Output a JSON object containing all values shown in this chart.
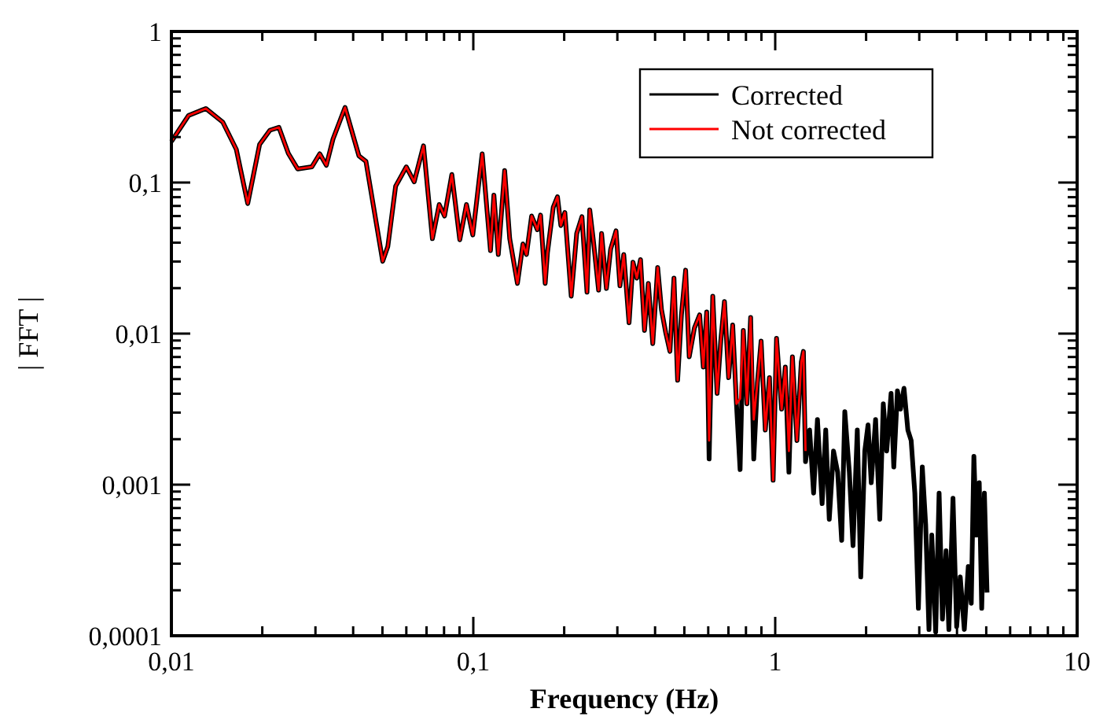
{
  "chart_data": {
    "type": "line",
    "xlabel": "Frequency (Hz)",
    "ylabel": "| FFT |",
    "log": "xy",
    "xlim": [
      0.01,
      10
    ],
    "ylim": [
      0.0001,
      1
    ],
    "xticks": [
      {
        "value": 0.01,
        "label": "0,01"
      },
      {
        "value": 0.02,
        "label": null
      },
      {
        "value": 0.03,
        "label": null
      },
      {
        "value": 0.04,
        "label": null
      },
      {
        "value": 0.05,
        "label": null
      },
      {
        "value": 0.06,
        "label": null
      },
      {
        "value": 0.07,
        "label": null
      },
      {
        "value": 0.08,
        "label": null
      },
      {
        "value": 0.09,
        "label": null
      },
      {
        "value": 0.1,
        "label": "0,1"
      },
      {
        "value": 0.2,
        "label": null
      },
      {
        "value": 0.3,
        "label": null
      },
      {
        "value": 0.4,
        "label": null
      },
      {
        "value": 0.5,
        "label": null
      },
      {
        "value": 0.6,
        "label": null
      },
      {
        "value": 0.7,
        "label": null
      },
      {
        "value": 0.8,
        "label": null
      },
      {
        "value": 0.9,
        "label": null
      },
      {
        "value": 1,
        "label": "1"
      },
      {
        "value": 2,
        "label": null
      },
      {
        "value": 3,
        "label": null
      },
      {
        "value": 4,
        "label": null
      },
      {
        "value": 5,
        "label": null
      },
      {
        "value": 6,
        "label": null
      },
      {
        "value": 7,
        "label": null
      },
      {
        "value": 8,
        "label": null
      },
      {
        "value": 9,
        "label": null
      },
      {
        "value": 10,
        "label": "10"
      }
    ],
    "yticks": [
      {
        "value": 0.0001,
        "label": "0,0001"
      },
      {
        "value": 0.0002,
        "label": null
      },
      {
        "value": 0.0003,
        "label": null
      },
      {
        "value": 0.0004,
        "label": null
      },
      {
        "value": 0.0005,
        "label": null
      },
      {
        "value": 0.0006,
        "label": null
      },
      {
        "value": 0.0007,
        "label": null
      },
      {
        "value": 0.0008,
        "label": null
      },
      {
        "value": 0.0009,
        "label": null
      },
      {
        "value": 0.001,
        "label": "0,001"
      },
      {
        "value": 0.002,
        "label": null
      },
      {
        "value": 0.003,
        "label": null
      },
      {
        "value": 0.004,
        "label": null
      },
      {
        "value": 0.005,
        "label": null
      },
      {
        "value": 0.006,
        "label": null
      },
      {
        "value": 0.007,
        "label": null
      },
      {
        "value": 0.008,
        "label": null
      },
      {
        "value": 0.009,
        "label": null
      },
      {
        "value": 0.01,
        "label": "0,01"
      },
      {
        "value": 0.02,
        "label": null
      },
      {
        "value": 0.03,
        "label": null
      },
      {
        "value": 0.04,
        "label": null
      },
      {
        "value": 0.05,
        "label": null
      },
      {
        "value": 0.06,
        "label": null
      },
      {
        "value": 0.07,
        "label": null
      },
      {
        "value": 0.08,
        "label": null
      },
      {
        "value": 0.09,
        "label": null
      },
      {
        "value": 0.1,
        "label": "0,1"
      },
      {
        "value": 0.2,
        "label": null
      },
      {
        "value": 0.3,
        "label": null
      },
      {
        "value": 0.4,
        "label": null
      },
      {
        "value": 0.5,
        "label": null
      },
      {
        "value": 0.6,
        "label": null
      },
      {
        "value": 0.7,
        "label": null
      },
      {
        "value": 0.8,
        "label": null
      },
      {
        "value": 0.9,
        "label": null
      },
      {
        "value": 1,
        "label": "1"
      }
    ],
    "legend": "top right",
    "series": [
      {
        "name": "Corrected",
        "color": "#000000",
        "x": [
          0.01,
          0.0114,
          0.013,
          0.0148,
          0.0164,
          0.0179,
          0.0196,
          0.0212,
          0.0227,
          0.0244,
          0.0262,
          0.0292,
          0.031,
          0.0326,
          0.0343,
          0.0376,
          0.0418,
          0.0441,
          0.0501,
          0.0521,
          0.0553,
          0.06,
          0.0637,
          0.0684,
          0.0732,
          0.0771,
          0.0803,
          0.0849,
          0.0902,
          0.0949,
          0.0996,
          0.107,
          0.114,
          0.117,
          0.121,
          0.127,
          0.132,
          0.14,
          0.146,
          0.15,
          0.156,
          0.163,
          0.167,
          0.173,
          0.176,
          0.184,
          0.19,
          0.195,
          0.201,
          0.211,
          0.22,
          0.229,
          0.238,
          0.243,
          0.25,
          0.26,
          0.266,
          0.276,
          0.285,
          0.297,
          0.306,
          0.315,
          0.328,
          0.338,
          0.348,
          0.358,
          0.369,
          0.38,
          0.393,
          0.408,
          0.42,
          0.434,
          0.448,
          0.462,
          0.475,
          0.489,
          0.505,
          0.519,
          0.54,
          0.562,
          0.578,
          0.593,
          0.604,
          0.621,
          0.642,
          0.66,
          0.679,
          0.701,
          0.723,
          0.744,
          0.765,
          0.784,
          0.806,
          0.829,
          0.849,
          0.873,
          0.898,
          0.927,
          0.957,
          0.984,
          1.01,
          1.05,
          1.08,
          1.11,
          1.14,
          1.18,
          1.22,
          1.24,
          1.26,
          1.3,
          1.34,
          1.38,
          1.43,
          1.47,
          1.51,
          1.56,
          1.61,
          1.66,
          1.7,
          1.76,
          1.81,
          1.87,
          1.92,
          1.98,
          2.03,
          2.08,
          2.15,
          2.22,
          2.28,
          2.34,
          2.42,
          2.47,
          2.54,
          2.6,
          2.67,
          2.75,
          2.82,
          2.9,
          2.98,
          3.07,
          3.15,
          3.23,
          3.3,
          3.4,
          3.49,
          3.58,
          3.68,
          3.76,
          3.88,
          3.99,
          4.1,
          4.23,
          4.36,
          4.46,
          4.55,
          4.64,
          4.74,
          4.83,
          4.93,
          5.03
        ],
        "values": [
          0.187,
          0.278,
          0.309,
          0.251,
          0.166,
          0.0726,
          0.179,
          0.222,
          0.232,
          0.156,
          0.123,
          0.127,
          0.155,
          0.13,
          0.194,
          0.314,
          0.15,
          0.138,
          0.0301,
          0.0377,
          0.0946,
          0.127,
          0.101,
          0.175,
          0.0425,
          0.0715,
          0.06,
          0.113,
          0.0418,
          0.0715,
          0.045,
          0.155,
          0.0354,
          0.0826,
          0.0334,
          0.12,
          0.0425,
          0.0215,
          0.0392,
          0.0334,
          0.06,
          0.0487,
          0.0609,
          0.0215,
          0.0342,
          0.0687,
          0.0805,
          0.0519,
          0.0634,
          0.0177,
          0.046,
          0.0594,
          0.0188,
          0.066,
          0.0408,
          0.0194,
          0.046,
          0.0199,
          0.0362,
          0.0479,
          0.0207,
          0.0334,
          0.0118,
          0.0297,
          0.0233,
          0.0309,
          0.0105,
          0.0215,
          0.00859,
          0.0274,
          0.0144,
          0.0101,
          0.00762,
          0.0233,
          0.00491,
          0.0133,
          0.0263,
          0.00703,
          0.0109,
          0.0133,
          0.006,
          0.0139,
          0.00148,
          0.0177,
          0.00402,
          0.00893,
          0.0163,
          0.00511,
          0.0114,
          0.00343,
          0.00126,
          0.0105,
          0.00343,
          0.0128,
          0.00148,
          0.00472,
          0.00893,
          0.0023,
          0.00511,
          0.00107,
          0.00931,
          0.00316,
          0.006,
          0.00121,
          0.00703,
          0.00196,
          0.00649,
          0.00762,
          0.00142,
          0.0023,
          0.00088,
          0.0027,
          0.00075,
          0.0023,
          0.00059,
          0.00167,
          0.00121,
          0.000428,
          0.00304,
          0.00121,
          0.000395,
          0.0023,
          0.000245,
          0.00167,
          0.00249,
          0.00103,
          0.0027,
          0.00059,
          0.00343,
          0.00167,
          0.00402,
          0.00131,
          0.00418,
          0.00316,
          0.00435,
          0.0023,
          0.00196,
          0.00088,
          0.000152,
          0.00131,
          0.000545,
          0.00011,
          0.000464,
          0.000106,
          0.00088,
          0.000129,
          0.000365,
          0.00011,
          0.000813,
          0.000115,
          0.000245,
          0.00011,
          0.000287,
          0.000164,
          0.00154,
          0.000464,
          0.00103,
          0.000152,
          0.00088,
          0.000193
        ]
      },
      {
        "name": "Not corrected",
        "color": "#ff0000",
        "x": [
          0.01,
          0.0114,
          0.013,
          0.0148,
          0.0164,
          0.0179,
          0.0196,
          0.0212,
          0.0227,
          0.0244,
          0.0262,
          0.0292,
          0.031,
          0.0326,
          0.0343,
          0.0376,
          0.0418,
          0.0441,
          0.0501,
          0.0521,
          0.0553,
          0.06,
          0.0637,
          0.0684,
          0.0732,
          0.0771,
          0.0803,
          0.0849,
          0.0902,
          0.0949,
          0.0996,
          0.107,
          0.114,
          0.117,
          0.121,
          0.127,
          0.132,
          0.14,
          0.146,
          0.15,
          0.156,
          0.163,
          0.167,
          0.173,
          0.176,
          0.184,
          0.19,
          0.195,
          0.201,
          0.211,
          0.22,
          0.229,
          0.238,
          0.243,
          0.25,
          0.26,
          0.266,
          0.276,
          0.285,
          0.297,
          0.306,
          0.315,
          0.328,
          0.338,
          0.348,
          0.358,
          0.369,
          0.38,
          0.393,
          0.408,
          0.42,
          0.434,
          0.448,
          0.462,
          0.475,
          0.489,
          0.505,
          0.519,
          0.54,
          0.562,
          0.578,
          0.593,
          0.604,
          0.621,
          0.642,
          0.66,
          0.679,
          0.701,
          0.723,
          0.744,
          0.765,
          0.784,
          0.806,
          0.829,
          0.849,
          0.873,
          0.898,
          0.927,
          0.957,
          0.984,
          1.01,
          1.05,
          1.08,
          1.11,
          1.14,
          1.18,
          1.22,
          1.24,
          1.26
        ],
        "values": [
          0.187,
          0.278,
          0.309,
          0.251,
          0.166,
          0.0726,
          0.179,
          0.222,
          0.232,
          0.156,
          0.123,
          0.127,
          0.155,
          0.13,
          0.194,
          0.314,
          0.15,
          0.138,
          0.0301,
          0.0377,
          0.0946,
          0.127,
          0.101,
          0.175,
          0.0425,
          0.0715,
          0.06,
          0.113,
          0.0418,
          0.0715,
          0.045,
          0.155,
          0.0354,
          0.0826,
          0.0334,
          0.12,
          0.0425,
          0.0215,
          0.0392,
          0.0334,
          0.06,
          0.0487,
          0.0609,
          0.0215,
          0.0342,
          0.0687,
          0.0805,
          0.0519,
          0.0634,
          0.0177,
          0.046,
          0.0594,
          0.0188,
          0.066,
          0.0408,
          0.0194,
          0.046,
          0.0199,
          0.0362,
          0.0479,
          0.0207,
          0.0334,
          0.0118,
          0.0297,
          0.0233,
          0.0309,
          0.0105,
          0.0215,
          0.00859,
          0.0274,
          0.0144,
          0.0101,
          0.00762,
          0.0233,
          0.00491,
          0.0133,
          0.0263,
          0.00703,
          0.0109,
          0.0133,
          0.006,
          0.0139,
          0.00196,
          0.0177,
          0.00402,
          0.00893,
          0.0163,
          0.00511,
          0.0114,
          0.00343,
          0.00371,
          0.0105,
          0.00343,
          0.0128,
          0.0027,
          0.00472,
          0.00893,
          0.0023,
          0.00511,
          0.00107,
          0.00931,
          0.00316,
          0.006,
          0.00167,
          0.00703,
          0.00196,
          0.00649,
          0.00762,
          0.00167
        ]
      }
    ]
  }
}
